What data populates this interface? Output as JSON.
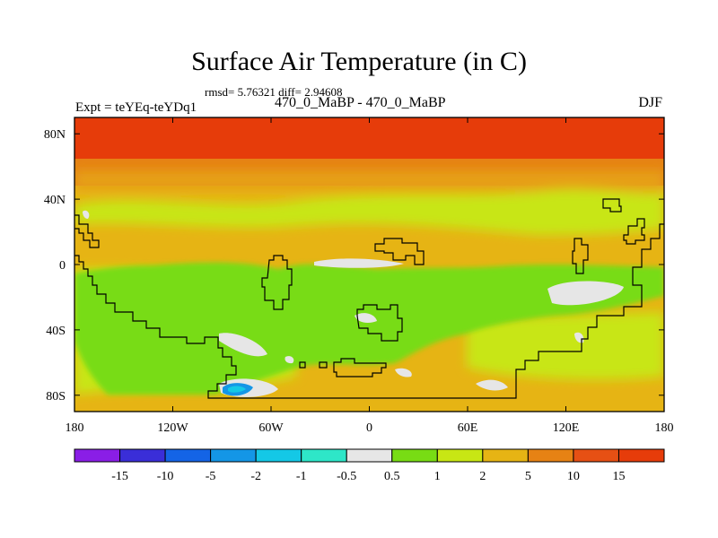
{
  "header": {
    "title": "Surface Air Temperature (in C)",
    "stats": "rmsd= 5.76321 diff= 2.94608",
    "left_label": "Expt = teYEq-teYDq1",
    "center_label": "470_0_MaBP - 470_0_MaBP",
    "right_label": "DJF"
  },
  "chart_data": {
    "type": "heatmap",
    "title": "Surface Air Temperature (in C)",
    "subtitle": "470_0_MaBP - 470_0_MaBP",
    "xlabel": "",
    "ylabel": "",
    "xlim": [
      -180,
      180
    ],
    "ylim": [
      -90,
      90
    ],
    "x_ticks": [
      {
        "value": -180,
        "label": "180"
      },
      {
        "value": -120,
        "label": "120W"
      },
      {
        "value": -60,
        "label": "60W"
      },
      {
        "value": 0,
        "label": "0"
      },
      {
        "value": 60,
        "label": "60E"
      },
      {
        "value": 120,
        "label": "120E"
      },
      {
        "value": 180,
        "label": "180"
      }
    ],
    "y_ticks": [
      {
        "value": 80,
        "label": "80N"
      },
      {
        "value": 40,
        "label": "40N"
      },
      {
        "value": 0,
        "label": "0"
      },
      {
        "value": -40,
        "label": "40S"
      },
      {
        "value": -80,
        "label": "80S"
      }
    ],
    "colorbar": {
      "labels": [
        "-15",
        "-10",
        "-5",
        "-2",
        "-1",
        "-0.5",
        "0.5",
        "1",
        "2",
        "5",
        "10",
        "15"
      ],
      "colors": [
        "#8a1ee6",
        "#3a2ed8",
        "#1464e6",
        "#1496e6",
        "#14c8e6",
        "#2ee6c8",
        "#e6e6e6",
        "#78dc14",
        "#c8e614",
        "#e6b414",
        "#e68214",
        "#e65014",
        "#e63c0a"
      ]
    },
    "fields": [
      {
        "level": "15",
        "color": "#e63c0a",
        "lon": [
          -180,
          180
        ],
        "lat": [
          65,
          90
        ]
      },
      {
        "level": "10",
        "color": "#e68214",
        "lon": [
          -180,
          180
        ],
        "lat": [
          42,
          65
        ]
      },
      {
        "level": "5",
        "color": "#e6b414",
        "lon": [
          -180,
          180
        ],
        "lat": [
          -90,
          42
        ]
      },
      {
        "level": "1",
        "color": "#78dc14",
        "lon": [
          -170,
          140
        ],
        "lat": [
          -80,
          10
        ]
      },
      {
        "level": "0.5",
        "color": "#e6e6e6",
        "lon": [
          20,
          40
        ],
        "lat": [
          -5,
          0
        ]
      },
      {
        "level": "0.5",
        "color": "#e6e6e6",
        "lon": [
          110,
          150
        ],
        "lat": [
          -30,
          -18
        ]
      },
      {
        "level": "0.5",
        "color": "#e6e6e6",
        "lon": [
          -90,
          -70
        ],
        "lat": [
          -55,
          -45
        ]
      },
      {
        "level": "-2",
        "color": "#1496e6",
        "lon": [
          -90,
          -75
        ],
        "lat": [
          -82,
          -78
        ]
      }
    ]
  }
}
